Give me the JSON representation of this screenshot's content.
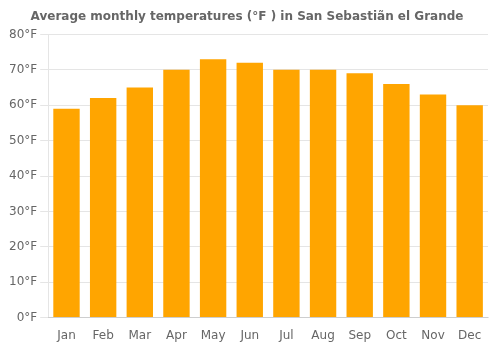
{
  "chart_data": {
    "type": "bar",
    "title": "Average monthly temperatures (°F ) in San Sebastiãn el Grande",
    "categories": [
      "Jan",
      "Feb",
      "Mar",
      "Apr",
      "May",
      "Jun",
      "Jul",
      "Aug",
      "Sep",
      "Oct",
      "Nov",
      "Dec"
    ],
    "values": [
      59,
      62,
      65,
      70,
      73,
      72,
      70,
      70,
      69,
      66,
      63,
      60
    ],
    "color": "#FFA500",
    "ylim": [
      0,
      80
    ],
    "yticks": [
      {
        "value": 0,
        "label": "0°F"
      },
      {
        "value": 10,
        "label": "10°F"
      },
      {
        "value": 20,
        "label": "20°F"
      },
      {
        "value": 30,
        "label": "30°F"
      },
      {
        "value": 40,
        "label": "40°F"
      },
      {
        "value": 50,
        "label": "50°F"
      },
      {
        "value": 60,
        "label": "60°F"
      },
      {
        "value": 70,
        "label": "70°F"
      },
      {
        "value": 80,
        "label": "80°F"
      }
    ],
    "grid": true
  }
}
